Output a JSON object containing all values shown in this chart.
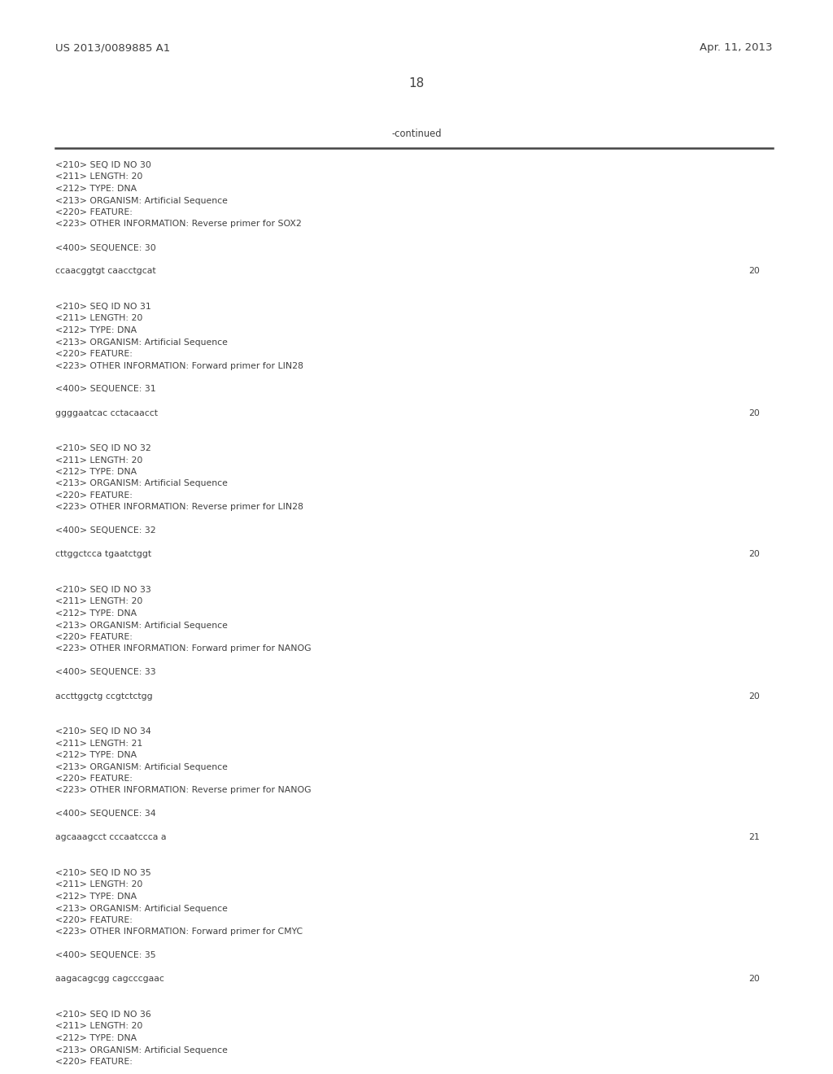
{
  "patent_number": "US 2013/0089885 A1",
  "date": "Apr. 11, 2013",
  "page_number": "18",
  "continued_label": "-continued",
  "bg_color": "#ffffff",
  "text_color": "#404040",
  "header_font_size": 9.5,
  "page_num_font_size": 11,
  "body_font_size": 7.8,
  "lines": [
    "<210> SEQ ID NO 30",
    "<211> LENGTH: 20",
    "<212> TYPE: DNA",
    "<213> ORGANISM: Artificial Sequence",
    "<220> FEATURE:",
    "<223> OTHER INFORMATION: Reverse primer for SOX2",
    "",
    "<400> SEQUENCE: 30",
    "",
    "SEQ:ccaacggtgt caacctgcat:20",
    "",
    "",
    "<210> SEQ ID NO 31",
    "<211> LENGTH: 20",
    "<212> TYPE: DNA",
    "<213> ORGANISM: Artificial Sequence",
    "<220> FEATURE:",
    "<223> OTHER INFORMATION: Forward primer for LIN28",
    "",
    "<400> SEQUENCE: 31",
    "",
    "SEQ:ggggaatcac cctacaacct:20",
    "",
    "",
    "<210> SEQ ID NO 32",
    "<211> LENGTH: 20",
    "<212> TYPE: DNA",
    "<213> ORGANISM: Artificial Sequence",
    "<220> FEATURE:",
    "<223> OTHER INFORMATION: Reverse primer for LIN28",
    "",
    "<400> SEQUENCE: 32",
    "",
    "SEQ:cttggctcca tgaatctggt:20",
    "",
    "",
    "<210> SEQ ID NO 33",
    "<211> LENGTH: 20",
    "<212> TYPE: DNA",
    "<213> ORGANISM: Artificial Sequence",
    "<220> FEATURE:",
    "<223> OTHER INFORMATION: Forward primer for NANOG",
    "",
    "<400> SEQUENCE: 33",
    "",
    "SEQ:accttggctg ccgtctctgg:20",
    "",
    "",
    "<210> SEQ ID NO 34",
    "<211> LENGTH: 21",
    "<212> TYPE: DNA",
    "<213> ORGANISM: Artificial Sequence",
    "<220> FEATURE:",
    "<223> OTHER INFORMATION: Reverse primer for NANOG",
    "",
    "<400> SEQUENCE: 34",
    "",
    "SEQ:agcaaagcct cccaatccca a:21",
    "",
    "",
    "<210> SEQ ID NO 35",
    "<211> LENGTH: 20",
    "<212> TYPE: DNA",
    "<213> ORGANISM: Artificial Sequence",
    "<220> FEATURE:",
    "<223> OTHER INFORMATION: Forward primer for CMYC",
    "",
    "<400> SEQUENCE: 35",
    "",
    "SEQ:aagacagcgg cagcccgaac:20",
    "",
    "",
    "<210> SEQ ID NO 36",
    "<211> LENGTH: 20",
    "<212> TYPE: DNA",
    "<213> ORGANISM: Artificial Sequence",
    "<220> FEATURE:"
  ]
}
